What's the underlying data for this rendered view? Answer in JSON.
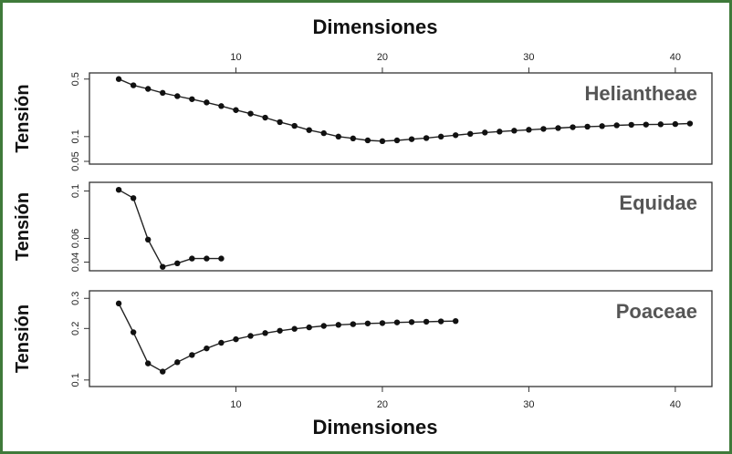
{
  "chart_data": {
    "type": "line",
    "xlabel_top": "Dimensiones",
    "xlabel_bottom": "Dimensiones",
    "x_ticks": [
      10,
      20,
      30,
      40
    ],
    "xlim": [
      0,
      42.5
    ],
    "colors": {
      "line": "#222222",
      "marker": "#111111",
      "frame": "#3f7a3a"
    },
    "grid": false,
    "panels": [
      {
        "name": "Heliantheae",
        "ylabel": "Tensión",
        "yscale": "log",
        "ylim": [
          0.05,
          0.55
        ],
        "y_ticks": [
          0.05,
          0.1,
          0.5
        ],
        "y_tick_labels": [
          "0.05",
          "0.1",
          "0.5"
        ],
        "x": [
          2,
          3,
          4,
          5,
          6,
          7,
          8,
          9,
          10,
          11,
          12,
          13,
          14,
          15,
          16,
          17,
          18,
          19,
          20,
          21,
          22,
          23,
          24,
          25,
          26,
          27,
          28,
          29,
          30,
          31,
          32,
          33,
          34,
          35,
          36,
          37,
          38,
          39,
          40,
          41
        ],
        "y": [
          0.5,
          0.42,
          0.38,
          0.34,
          0.31,
          0.285,
          0.26,
          0.235,
          0.21,
          0.19,
          0.17,
          0.15,
          0.135,
          0.12,
          0.11,
          0.1,
          0.095,
          0.09,
          0.088,
          0.09,
          0.093,
          0.096,
          0.1,
          0.104,
          0.108,
          0.112,
          0.115,
          0.118,
          0.121,
          0.124,
          0.127,
          0.13,
          0.132,
          0.134,
          0.137,
          0.139,
          0.14,
          0.141,
          0.142,
          0.144
        ]
      },
      {
        "name": "Equidae",
        "ylabel": "Tensión",
        "yscale": "linear",
        "ylim": [
          0.035,
          0.105
        ],
        "y_ticks": [
          0.04,
          0.06,
          0.1
        ],
        "y_tick_labels": [
          "0.04",
          "0.06",
          "0.1"
        ],
        "x": [
          2,
          3,
          4,
          5,
          6,
          7,
          8,
          9
        ],
        "y": [
          0.101,
          0.094,
          0.059,
          0.036,
          0.039,
          0.043,
          0.043,
          0.043
        ]
      },
      {
        "name": "Poaceae",
        "ylabel": "Tensión",
        "yscale": "log",
        "ylim": [
          0.095,
          0.32
        ],
        "y_ticks": [
          0.1,
          0.2,
          0.3
        ],
        "y_tick_labels": [
          "0.1",
          "0.2",
          "0.3"
        ],
        "x": [
          2,
          3,
          4,
          5,
          6,
          7,
          8,
          9,
          10,
          11,
          12,
          13,
          14,
          15,
          16,
          17,
          18,
          19,
          20,
          21,
          22,
          23,
          24,
          25
        ],
        "y": [
          0.28,
          0.19,
          0.125,
          0.112,
          0.127,
          0.14,
          0.153,
          0.165,
          0.173,
          0.181,
          0.188,
          0.194,
          0.199,
          0.203,
          0.207,
          0.21,
          0.212,
          0.214,
          0.215,
          0.217,
          0.218,
          0.219,
          0.22,
          0.221
        ]
      }
    ]
  }
}
